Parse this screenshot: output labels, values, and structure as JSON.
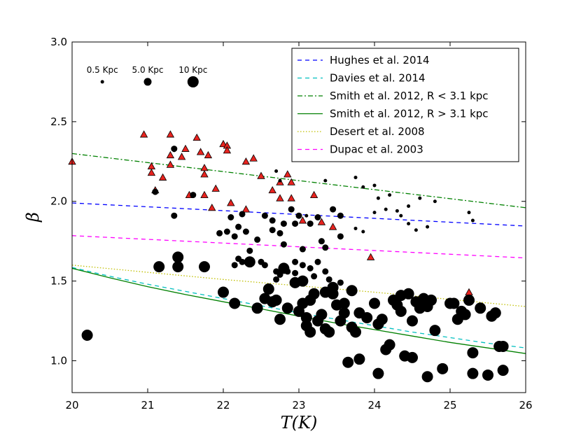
{
  "chart_data": {
    "type": "scatter",
    "xlabel": "T(K)",
    "ylabel": "β",
    "xlim": [
      20,
      26
    ],
    "ylim": [
      0.8,
      3.0
    ],
    "x_ticks": [
      "20",
      "21",
      "22",
      "23",
      "24",
      "25",
      "26"
    ],
    "y_ticks": [
      "1.0",
      "1.5",
      "2.0",
      "2.5",
      "3.0"
    ],
    "size_key": [
      {
        "label": "0.5 Kpc",
        "x": 20.4,
        "y": 2.75,
        "size": "small"
      },
      {
        "label": "5.0 Kpc",
        "x": 21.0,
        "y": 2.75,
        "size": "medium"
      },
      {
        "label": "10 Kpc",
        "x": 21.6,
        "y": 2.75,
        "size": "large"
      }
    ],
    "lines": [
      {
        "name": "Hughes et al. 2014",
        "color": "#0000ff",
        "style": "dashed",
        "x": [
          20,
          26
        ],
        "y": [
          1.99,
          1.845
        ]
      },
      {
        "name": "Davies et al. 2014",
        "color": "#00bfbf",
        "style": "dashed",
        "x": [
          20.0,
          20.5,
          21.0,
          21.5,
          22.0,
          22.5,
          23.0,
          23.5,
          24.0,
          24.5,
          25.0,
          25.5,
          26.0
        ],
        "y": [
          1.585,
          1.53,
          1.48,
          1.435,
          1.39,
          1.345,
          1.3,
          1.26,
          1.22,
          1.18,
          1.145,
          1.11,
          1.08
        ]
      },
      {
        "name": "Smith et al. 2012, R < 3.1 kpc",
        "color": "#008000",
        "style": "dashdot",
        "x": [
          20,
          26
        ],
        "y": [
          2.3,
          1.96
        ]
      },
      {
        "name": "Smith et al. 2012, R > 3.1 kpc",
        "color": "#008000",
        "style": "solid",
        "x": [
          20.0,
          20.5,
          21.0,
          21.5,
          22.0,
          22.5,
          23.0,
          23.5,
          24.0,
          24.5,
          25.0,
          25.5,
          26.0
        ],
        "y": [
          1.58,
          1.52,
          1.465,
          1.415,
          1.37,
          1.325,
          1.28,
          1.235,
          1.195,
          1.155,
          1.115,
          1.08,
          1.045
        ]
      },
      {
        "name": "Desert et al. 2008",
        "color": "#bfbf00",
        "style": "dotted",
        "x": [
          20.0,
          21.0,
          22.0,
          23.0,
          24.0,
          25.0,
          26.0
        ],
        "y": [
          1.6,
          1.555,
          1.51,
          1.47,
          1.43,
          1.385,
          1.34
        ]
      },
      {
        "name": "Dupac et al. 2003",
        "color": "#ff00ff",
        "style": "dashed",
        "x": [
          20,
          26
        ],
        "y": [
          1.785,
          1.645
        ]
      }
    ],
    "triangles": [
      [
        20.0,
        2.25
      ],
      [
        20.95,
        2.42
      ],
      [
        21.05,
        2.22
      ],
      [
        21.05,
        2.18
      ],
      [
        21.1,
        2.07
      ],
      [
        21.2,
        2.15
      ],
      [
        21.3,
        2.42
      ],
      [
        21.3,
        2.29
      ],
      [
        21.3,
        2.23
      ],
      [
        21.45,
        2.28
      ],
      [
        21.5,
        2.33
      ],
      [
        21.55,
        2.04
      ],
      [
        21.65,
        2.4
      ],
      [
        21.7,
        2.31
      ],
      [
        21.75,
        2.21
      ],
      [
        21.75,
        2.17
      ],
      [
        21.75,
        2.04
      ],
      [
        21.8,
        2.29
      ],
      [
        21.85,
        1.96
      ],
      [
        21.9,
        2.08
      ],
      [
        22.0,
        2.36
      ],
      [
        22.05,
        2.35
      ],
      [
        22.05,
        2.32
      ],
      [
        22.1,
        1.99
      ],
      [
        22.3,
        2.25
      ],
      [
        22.3,
        1.95
      ],
      [
        22.4,
        2.27
      ],
      [
        22.5,
        2.16
      ],
      [
        22.65,
        2.07
      ],
      [
        22.75,
        2.12
      ],
      [
        22.75,
        2.02
      ],
      [
        22.85,
        2.17
      ],
      [
        22.9,
        2.12
      ],
      [
        22.9,
        2.02
      ],
      [
        23.05,
        1.88
      ],
      [
        23.2,
        2.04
      ],
      [
        23.3,
        1.87
      ],
      [
        23.45,
        1.84
      ],
      [
        23.95,
        1.65
      ],
      [
        25.25,
        1.43
      ]
    ],
    "points_small": [
      [
        21.35,
        2.32
      ],
      [
        22.7,
        2.19
      ],
      [
        22.75,
        2.13
      ],
      [
        23.1,
        1.91
      ],
      [
        23.35,
        2.13
      ],
      [
        23.75,
        2.15
      ],
      [
        23.85,
        2.09
      ],
      [
        24.0,
        2.1
      ],
      [
        24.05,
        2.02
      ],
      [
        24.15,
        1.95
      ],
      [
        24.2,
        2.04
      ],
      [
        24.35,
        1.91
      ],
      [
        24.6,
        2.02
      ],
      [
        24.8,
        2.0
      ],
      [
        25.25,
        1.93
      ],
      [
        25.3,
        1.88
      ],
      [
        24.7,
        1.84
      ],
      [
        24.55,
        1.82
      ],
      [
        23.85,
        1.81
      ],
      [
        23.75,
        1.83
      ],
      [
        24.45,
        1.86
      ],
      [
        24.3,
        1.94
      ],
      [
        24.45,
        1.97
      ],
      [
        24.0,
        1.93
      ]
    ],
    "points_medium": [
      [
        21.1,
        2.06
      ],
      [
        21.35,
        1.91
      ],
      [
        21.35,
        2.33
      ],
      [
        21.6,
        2.04
      ],
      [
        21.95,
        1.8
      ],
      [
        22.05,
        1.81
      ],
      [
        22.1,
        1.9
      ],
      [
        22.15,
        1.78
      ],
      [
        22.25,
        1.92
      ],
      [
        22.2,
        1.84
      ],
      [
        22.3,
        1.81
      ],
      [
        22.35,
        1.69
      ],
      [
        22.45,
        1.76
      ],
      [
        22.55,
        1.91
      ],
      [
        22.65,
        1.88
      ],
      [
        22.65,
        1.82
      ],
      [
        22.75,
        1.8
      ],
      [
        22.8,
        1.86
      ],
      [
        22.8,
        1.73
      ],
      [
        22.9,
        1.95
      ],
      [
        22.95,
        1.86
      ],
      [
        23.0,
        1.91
      ],
      [
        23.05,
        1.7
      ],
      [
        23.15,
        1.86
      ],
      [
        23.25,
        1.9
      ],
      [
        23.3,
        1.75
      ],
      [
        23.35,
        1.71
      ],
      [
        23.45,
        1.95
      ],
      [
        23.55,
        1.78
      ],
      [
        23.55,
        1.91
      ],
      [
        22.5,
        1.62
      ],
      [
        22.55,
        1.6
      ],
      [
        22.7,
        1.56
      ],
      [
        22.75,
        1.54
      ],
      [
        22.85,
        1.56
      ],
      [
        22.95,
        1.62
      ],
      [
        22.95,
        1.55
      ],
      [
        23.05,
        1.6
      ],
      [
        23.15,
        1.58
      ],
      [
        23.2,
        1.53
      ],
      [
        23.25,
        1.62
      ],
      [
        23.35,
        1.56
      ],
      [
        23.4,
        1.51
      ],
      [
        22.2,
        1.64
      ],
      [
        22.15,
        1.6
      ],
      [
        22.25,
        1.62
      ],
      [
        22.7,
        1.51
      ],
      [
        23.55,
        1.49
      ]
    ],
    "points_large": [
      [
        20.2,
        1.16
      ],
      [
        21.15,
        1.59
      ],
      [
        21.4,
        1.65
      ],
      [
        21.4,
        1.59
      ],
      [
        21.75,
        1.59
      ],
      [
        22.0,
        1.43
      ],
      [
        22.15,
        1.36
      ],
      [
        22.35,
        1.62
      ],
      [
        22.45,
        1.33
      ],
      [
        22.55,
        1.39
      ],
      [
        22.6,
        1.45
      ],
      [
        22.65,
        1.37
      ],
      [
        22.75,
        1.26
      ],
      [
        22.7,
        1.38
      ],
      [
        22.8,
        1.58
      ],
      [
        22.85,
        1.33
      ],
      [
        22.95,
        1.49
      ],
      [
        23.0,
        1.31
      ],
      [
        23.05,
        1.36
      ],
      [
        23.05,
        1.5
      ],
      [
        23.1,
        1.27
      ],
      [
        23.1,
        1.22
      ],
      [
        23.15,
        1.18
      ],
      [
        23.15,
        1.38
      ],
      [
        23.2,
        1.42
      ],
      [
        23.25,
        1.25
      ],
      [
        23.3,
        1.29
      ],
      [
        23.35,
        1.2
      ],
      [
        23.4,
        1.18
      ],
      [
        23.45,
        1.42
      ],
      [
        23.5,
        1.35
      ],
      [
        23.55,
        1.25
      ],
      [
        23.6,
        1.3
      ],
      [
        23.6,
        1.36
      ],
      [
        23.65,
        0.99
      ],
      [
        23.7,
        1.21
      ],
      [
        23.7,
        1.44
      ],
      [
        23.75,
        1.18
      ],
      [
        23.8,
        1.01
      ],
      [
        23.8,
        1.3
      ],
      [
        23.9,
        1.27
      ],
      [
        24.0,
        1.36
      ],
      [
        24.05,
        1.23
      ],
      [
        24.05,
        0.92
      ],
      [
        24.1,
        1.26
      ],
      [
        24.15,
        1.07
      ],
      [
        24.2,
        1.1
      ],
      [
        24.25,
        1.38
      ],
      [
        24.3,
        1.35
      ],
      [
        24.35,
        1.31
      ],
      [
        24.35,
        1.41
      ],
      [
        24.4,
        1.03
      ],
      [
        24.45,
        1.42
      ],
      [
        24.5,
        1.25
      ],
      [
        24.5,
        1.02
      ],
      [
        24.55,
        1.37
      ],
      [
        24.6,
        1.33
      ],
      [
        24.65,
        1.39
      ],
      [
        24.7,
        1.34
      ],
      [
        24.7,
        0.9
      ],
      [
        24.75,
        1.38
      ],
      [
        24.8,
        1.19
      ],
      [
        24.9,
        0.95
      ],
      [
        25.0,
        1.36
      ],
      [
        25.05,
        1.36
      ],
      [
        25.1,
        1.26
      ],
      [
        25.15,
        1.31
      ],
      [
        25.2,
        1.29
      ],
      [
        25.25,
        1.38
      ],
      [
        25.3,
        0.92
      ],
      [
        25.3,
        1.05
      ],
      [
        25.4,
        1.33
      ],
      [
        25.5,
        0.91
      ],
      [
        25.55,
        1.28
      ],
      [
        25.6,
        1.3
      ],
      [
        25.65,
        1.09
      ],
      [
        25.7,
        0.94
      ],
      [
        25.7,
        1.09
      ],
      [
        23.35,
        1.43
      ],
      [
        23.45,
        1.46
      ]
    ]
  }
}
